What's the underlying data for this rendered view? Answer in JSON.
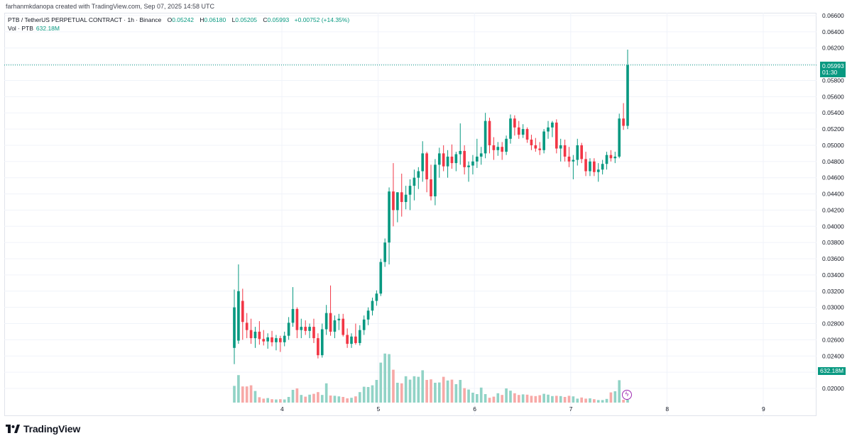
{
  "header": {
    "credit": "farhanmkdanopa created with TradingView.com, Sep 07, 2025 14:58 UTC",
    "symbol_line": "PTB / TetherUS PERPETUAL CONTRACT · 1h · Binance",
    "o_label": "O",
    "o_value": "0.05242",
    "h_label": "H",
    "h_value": "0.06180",
    "l_label": "L",
    "l_value": "0.05205",
    "c_label": "C",
    "c_value": "0.05993",
    "change": "+0.00752 (+14.35%)",
    "vol_label": "Vol · PTB",
    "vol_value": "632.18M"
  },
  "price_axis": {
    "ticks": [
      "0.06600",
      "0.06400",
      "0.06200",
      "0.06000",
      "0.05800",
      "0.05600",
      "0.05400",
      "0.05200",
      "0.05000",
      "0.04800",
      "0.04600",
      "0.04400",
      "0.04200",
      "0.04000",
      "0.03800",
      "0.03600",
      "0.03400",
      "0.03200",
      "0.03000",
      "0.02800",
      "0.02600",
      "0.02400",
      "0.02200",
      "0.02000"
    ],
    "last_price": "0.05993",
    "countdown": "01:30",
    "volume_label": "632.18M"
  },
  "time_axis": {
    "ticks": [
      "4",
      "5",
      "6",
      "7",
      "8",
      "9"
    ]
  },
  "footer": {
    "brand": "TradingView"
  },
  "colors": {
    "up": "#089981",
    "down": "#f23645",
    "up_vol": "#91d3c6",
    "down_vol": "#f7a9a7",
    "grid": "#f0f3fa"
  },
  "chart_data": {
    "type": "candlestick",
    "title": "PTB / TetherUS PERPETUAL CONTRACT · 1h · Binance",
    "x_unit": "day (September 2025)",
    "ylim": [
      0.0185,
      0.0665
    ],
    "xlim": [
      3.0,
      9.75
    ],
    "grid": true,
    "candles": [
      {
        "o": 0.025,
        "h": 0.0322,
        "l": 0.023,
        "c": 0.03
      },
      {
        "o": 0.0259,
        "h": 0.0353,
        "l": 0.0255,
        "c": 0.032
      },
      {
        "o": 0.0308,
        "h": 0.0323,
        "l": 0.026,
        "c": 0.0282
      },
      {
        "o": 0.0281,
        "h": 0.0293,
        "l": 0.0262,
        "c": 0.0272
      },
      {
        "o": 0.0272,
        "h": 0.0286,
        "l": 0.0255,
        "c": 0.0262
      },
      {
        "o": 0.0262,
        "h": 0.0276,
        "l": 0.025,
        "c": 0.027
      },
      {
        "o": 0.027,
        "h": 0.0283,
        "l": 0.0254,
        "c": 0.0261
      },
      {
        "o": 0.0261,
        "h": 0.0272,
        "l": 0.0253,
        "c": 0.0258
      },
      {
        "o": 0.0258,
        "h": 0.0268,
        "l": 0.0249,
        "c": 0.0263
      },
      {
        "o": 0.0263,
        "h": 0.0271,
        "l": 0.0252,
        "c": 0.0257
      },
      {
        "o": 0.0257,
        "h": 0.0266,
        "l": 0.0247,
        "c": 0.0262
      },
      {
        "o": 0.0262,
        "h": 0.0265,
        "l": 0.0245,
        "c": 0.0257
      },
      {
        "o": 0.0257,
        "h": 0.027,
        "l": 0.0252,
        "c": 0.0265
      },
      {
        "o": 0.0265,
        "h": 0.0288,
        "l": 0.026,
        "c": 0.0281
      },
      {
        "o": 0.0281,
        "h": 0.0325,
        "l": 0.0276,
        "c": 0.0298
      },
      {
        "o": 0.0298,
        "h": 0.03,
        "l": 0.0262,
        "c": 0.0272
      },
      {
        "o": 0.0272,
        "h": 0.0286,
        "l": 0.0262,
        "c": 0.0276
      },
      {
        "o": 0.0276,
        "h": 0.0284,
        "l": 0.0266,
        "c": 0.0271
      },
      {
        "o": 0.0271,
        "h": 0.028,
        "l": 0.0262,
        "c": 0.0276
      },
      {
        "o": 0.0276,
        "h": 0.0286,
        "l": 0.0256,
        "c": 0.0262
      },
      {
        "o": 0.0262,
        "h": 0.0268,
        "l": 0.0237,
        "c": 0.0241
      },
      {
        "o": 0.0241,
        "h": 0.028,
        "l": 0.0238,
        "c": 0.0273
      },
      {
        "o": 0.0273,
        "h": 0.0303,
        "l": 0.0266,
        "c": 0.0293
      },
      {
        "o": 0.0293,
        "h": 0.0327,
        "l": 0.0265,
        "c": 0.027
      },
      {
        "o": 0.027,
        "h": 0.029,
        "l": 0.0262,
        "c": 0.0284
      },
      {
        "o": 0.0284,
        "h": 0.0292,
        "l": 0.0272,
        "c": 0.0286
      },
      {
        "o": 0.0286,
        "h": 0.0292,
        "l": 0.0264,
        "c": 0.0266
      },
      {
        "o": 0.0266,
        "h": 0.0274,
        "l": 0.025,
        "c": 0.0255
      },
      {
        "o": 0.0255,
        "h": 0.0268,
        "l": 0.025,
        "c": 0.0264
      },
      {
        "o": 0.0264,
        "h": 0.028,
        "l": 0.0254,
        "c": 0.0256
      },
      {
        "o": 0.0256,
        "h": 0.0278,
        "l": 0.0253,
        "c": 0.0272
      },
      {
        "o": 0.0272,
        "h": 0.029,
        "l": 0.0266,
        "c": 0.0285
      },
      {
        "o": 0.0285,
        "h": 0.03,
        "l": 0.0278,
        "c": 0.0296
      },
      {
        "o": 0.0296,
        "h": 0.0312,
        "l": 0.029,
        "c": 0.0308
      },
      {
        "o": 0.0308,
        "h": 0.0321,
        "l": 0.0302,
        "c": 0.0317
      },
      {
        "o": 0.0317,
        "h": 0.036,
        "l": 0.0314,
        "c": 0.0356
      },
      {
        "o": 0.0356,
        "h": 0.0385,
        "l": 0.035,
        "c": 0.038
      },
      {
        "o": 0.038,
        "h": 0.0448,
        "l": 0.0353,
        "c": 0.0443
      },
      {
        "o": 0.0443,
        "h": 0.0478,
        "l": 0.04,
        "c": 0.042
      },
      {
        "o": 0.042,
        "h": 0.0442,
        "l": 0.0405,
        "c": 0.0442
      },
      {
        "o": 0.0442,
        "h": 0.0465,
        "l": 0.0412,
        "c": 0.043
      },
      {
        "o": 0.043,
        "h": 0.045,
        "l": 0.0421,
        "c": 0.0439
      },
      {
        "o": 0.0439,
        "h": 0.0458,
        "l": 0.042,
        "c": 0.045
      },
      {
        "o": 0.045,
        "h": 0.047,
        "l": 0.0432,
        "c": 0.046
      },
      {
        "o": 0.046,
        "h": 0.0473,
        "l": 0.0446,
        "c": 0.0468
      },
      {
        "o": 0.0468,
        "h": 0.0505,
        "l": 0.0455,
        "c": 0.049
      },
      {
        "o": 0.049,
        "h": 0.0492,
        "l": 0.0442,
        "c": 0.0458
      },
      {
        "o": 0.0458,
        "h": 0.0476,
        "l": 0.0432,
        "c": 0.0437
      },
      {
        "o": 0.0437,
        "h": 0.0483,
        "l": 0.0426,
        "c": 0.0476
      },
      {
        "o": 0.0476,
        "h": 0.0497,
        "l": 0.046,
        "c": 0.049
      },
      {
        "o": 0.049,
        "h": 0.05,
        "l": 0.0468,
        "c": 0.0474
      },
      {
        "o": 0.0474,
        "h": 0.0494,
        "l": 0.046,
        "c": 0.0486
      },
      {
        "o": 0.0486,
        "h": 0.0501,
        "l": 0.0471,
        "c": 0.0478
      },
      {
        "o": 0.0478,
        "h": 0.0492,
        "l": 0.0468,
        "c": 0.0489
      },
      {
        "o": 0.0489,
        "h": 0.0527,
        "l": 0.0476,
        "c": 0.0493
      },
      {
        "o": 0.0493,
        "h": 0.05,
        "l": 0.0464,
        "c": 0.0473
      },
      {
        "o": 0.0473,
        "h": 0.048,
        "l": 0.0455,
        "c": 0.0475
      },
      {
        "o": 0.0475,
        "h": 0.0488,
        "l": 0.0464,
        "c": 0.048
      },
      {
        "o": 0.048,
        "h": 0.0508,
        "l": 0.0472,
        "c": 0.0486
      },
      {
        "o": 0.0486,
        "h": 0.0498,
        "l": 0.0476,
        "c": 0.049
      },
      {
        "o": 0.049,
        "h": 0.054,
        "l": 0.0484,
        "c": 0.053
      },
      {
        "o": 0.053,
        "h": 0.0534,
        "l": 0.049,
        "c": 0.05
      },
      {
        "o": 0.05,
        "h": 0.051,
        "l": 0.0482,
        "c": 0.0494
      },
      {
        "o": 0.0494,
        "h": 0.0504,
        "l": 0.0487,
        "c": 0.0498
      },
      {
        "o": 0.0498,
        "h": 0.0504,
        "l": 0.0482,
        "c": 0.0492
      },
      {
        "o": 0.0492,
        "h": 0.0512,
        "l": 0.0488,
        "c": 0.0508
      },
      {
        "o": 0.0508,
        "h": 0.0538,
        "l": 0.0502,
        "c": 0.0533
      },
      {
        "o": 0.0533,
        "h": 0.0537,
        "l": 0.0512,
        "c": 0.0522
      },
      {
        "o": 0.0522,
        "h": 0.053,
        "l": 0.0508,
        "c": 0.0513
      },
      {
        "o": 0.0513,
        "h": 0.0526,
        "l": 0.0509,
        "c": 0.052
      },
      {
        "o": 0.052,
        "h": 0.0522,
        "l": 0.0503,
        "c": 0.0507
      },
      {
        "o": 0.0507,
        "h": 0.0513,
        "l": 0.0494,
        "c": 0.05
      },
      {
        "o": 0.05,
        "h": 0.0509,
        "l": 0.0492,
        "c": 0.0496
      },
      {
        "o": 0.0496,
        "h": 0.0504,
        "l": 0.0488,
        "c": 0.0494
      },
      {
        "o": 0.0494,
        "h": 0.052,
        "l": 0.049,
        "c": 0.0517
      },
      {
        "o": 0.0517,
        "h": 0.053,
        "l": 0.0508,
        "c": 0.0522
      },
      {
        "o": 0.0522,
        "h": 0.053,
        "l": 0.051,
        "c": 0.0528
      },
      {
        "o": 0.0528,
        "h": 0.0532,
        "l": 0.049,
        "c": 0.0496
      },
      {
        "o": 0.0496,
        "h": 0.0508,
        "l": 0.048,
        "c": 0.05
      },
      {
        "o": 0.05,
        "h": 0.0507,
        "l": 0.048,
        "c": 0.0486
      },
      {
        "o": 0.0486,
        "h": 0.0498,
        "l": 0.0473,
        "c": 0.048
      },
      {
        "o": 0.048,
        "h": 0.0488,
        "l": 0.0458,
        "c": 0.0482
      },
      {
        "o": 0.0482,
        "h": 0.0508,
        "l": 0.0475,
        "c": 0.05
      },
      {
        "o": 0.05,
        "h": 0.0503,
        "l": 0.0478,
        "c": 0.0483
      },
      {
        "o": 0.0483,
        "h": 0.0492,
        "l": 0.0462,
        "c": 0.0468
      },
      {
        "o": 0.0468,
        "h": 0.0484,
        "l": 0.0462,
        "c": 0.048
      },
      {
        "o": 0.048,
        "h": 0.0484,
        "l": 0.0462,
        "c": 0.0467
      },
      {
        "o": 0.0467,
        "h": 0.0478,
        "l": 0.0455,
        "c": 0.047
      },
      {
        "o": 0.047,
        "h": 0.0482,
        "l": 0.0464,
        "c": 0.0477
      },
      {
        "o": 0.0477,
        "h": 0.0492,
        "l": 0.047,
        "c": 0.0488
      },
      {
        "o": 0.0488,
        "h": 0.0494,
        "l": 0.048,
        "c": 0.0484
      },
      {
        "o": 0.0484,
        "h": 0.0492,
        "l": 0.0478,
        "c": 0.0486
      },
      {
        "o": 0.0486,
        "h": 0.0539,
        "l": 0.0484,
        "c": 0.0533
      },
      {
        "o": 0.0533,
        "h": 0.0552,
        "l": 0.0519,
        "c": 0.0524
      },
      {
        "o": 0.0524,
        "h": 0.0618,
        "l": 0.052,
        "c": 0.0599
      }
    ],
    "volume_relative": [
      0.59,
      0.97,
      0.57,
      0.57,
      0.61,
      0.41,
      0.19,
      0.14,
      0.16,
      0.12,
      0.11,
      0.12,
      0.11,
      0.2,
      0.45,
      0.5,
      0.27,
      0.21,
      0.28,
      0.31,
      0.37,
      0.27,
      0.68,
      0.25,
      0.24,
      0.22,
      0.2,
      0.15,
      0.17,
      0.22,
      0.37,
      0.56,
      0.55,
      0.61,
      0.8,
      1.41,
      1.73,
      1.71,
      1.16,
      0.7,
      0.68,
      0.93,
      0.81,
      0.93,
      0.91,
      1.14,
      0.8,
      0.82,
      0.7,
      0.71,
      0.91,
      0.78,
      0.81,
      0.65,
      0.8,
      0.51,
      0.46,
      0.35,
      0.3,
      0.53,
      0.3,
      0.17,
      0.21,
      0.33,
      0.27,
      0.5,
      0.42,
      0.33,
      0.27,
      0.29,
      0.28,
      0.24,
      0.23,
      0.26,
      0.31,
      0.28,
      0.23,
      0.24,
      0.23,
      0.2,
      0.24,
      0.22,
      0.14,
      0.18,
      0.14,
      0.15,
      0.12,
      0.09,
      0.09,
      0.13,
      0.36,
      0.4,
      0.79,
      0.1,
      0.1
    ]
  }
}
